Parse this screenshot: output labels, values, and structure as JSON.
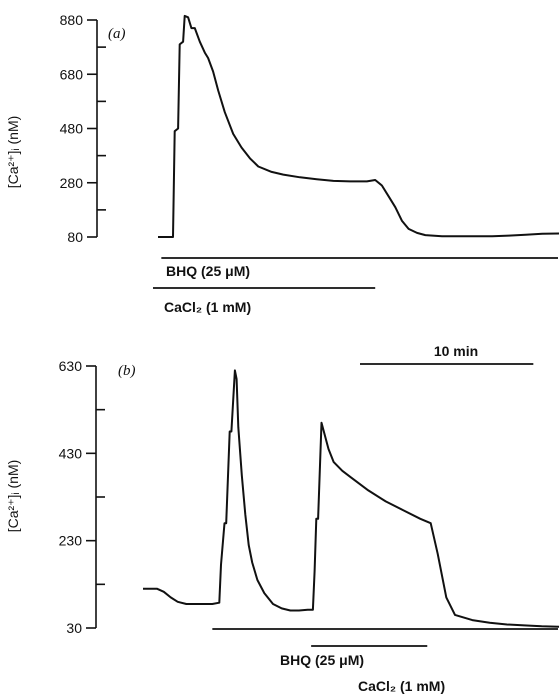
{
  "chart_data": [
    {
      "type": "line",
      "panel": "(a)",
      "title": "",
      "xlabel": "",
      "ylabel": "[Ca²⁺]ᵢ (nM)",
      "ylim": [
        80,
        880
      ],
      "yticks": [
        80,
        280,
        480,
        680,
        880
      ],
      "minor_yticks": [
        180,
        380,
        580,
        780
      ],
      "grid": false,
      "x_unit": "min",
      "xlim": [
        0,
        24
      ],
      "series": [
        {
          "x": [
            0,
            0.9,
            1.0,
            1.2,
            1.3,
            1.5,
            1.6,
            1.8,
            2.0,
            2.2,
            2.5,
            2.8,
            3.0,
            3.3,
            3.6,
            4.0,
            4.5,
            5.0,
            5.5,
            6.0,
            6.8,
            7.5,
            8.5,
            9.5,
            10.5,
            11.5,
            12.5,
            13.0,
            13.4,
            13.8,
            14.2,
            14.6,
            15.0,
            15.5,
            16.0,
            17.0,
            18.0,
            19.0,
            20.0,
            21.0,
            22.0,
            23.0,
            24.0
          ],
          "y": [
            80,
            80,
            470,
            480,
            790,
            800,
            895,
            890,
            850,
            850,
            800,
            760,
            740,
            690,
            620,
            540,
            460,
            410,
            370,
            340,
            320,
            310,
            300,
            293,
            287,
            285,
            285,
            290,
            270,
            230,
            190,
            140,
            110,
            95,
            87,
            83,
            83,
            83,
            83,
            85,
            88,
            92,
            93
          ]
        }
      ],
      "bars": [
        {
          "label": "BHQ (25 μM)",
          "x_start": 0.2,
          "x_end": 24
        },
        {
          "label": "CaCl₂ (1 mM)",
          "x_start": -0.3,
          "x_end": 13.0
        }
      ]
    },
    {
      "type": "line",
      "panel": "(b)",
      "title": "",
      "xlabel": "",
      "ylabel": "[Ca²⁺]ᵢ (nM)",
      "ylim": [
        30,
        630
      ],
      "yticks": [
        30,
        230,
        430,
        630
      ],
      "minor_yticks": [
        130,
        330,
        530
      ],
      "grid": false,
      "x_unit": "min",
      "xlim": [
        0,
        24
      ],
      "scale_bar": {
        "label": "10 min",
        "minutes": 10
      },
      "series": [
        {
          "x": [
            0,
            0.8,
            1.2,
            1.6,
            2.0,
            2.5,
            3.0,
            3.5,
            4.0,
            4.4,
            4.5,
            4.7,
            4.8,
            5.0,
            5.1,
            5.3,
            5.4,
            5.5,
            5.7,
            5.9,
            6.1,
            6.3,
            6.6,
            7.0,
            7.5,
            8.0,
            8.5,
            9.0,
            9.5,
            9.8,
            9.9,
            10.0,
            10.1,
            10.3,
            10.5,
            10.7,
            11.0,
            11.5,
            12.0,
            13.0,
            14.0,
            15.0,
            16.0,
            16.6,
            17.0,
            17.5,
            18.0,
            19.0,
            20.0,
            21.0,
            22.0,
            23.0,
            24.0
          ],
          "y": [
            120,
            120,
            113,
            100,
            90,
            85,
            85,
            85,
            85,
            88,
            175,
            270,
            270,
            480,
            480,
            620,
            600,
            490,
            380,
            290,
            220,
            180,
            140,
            110,
            85,
            75,
            70,
            70,
            72,
            72,
            160,
            280,
            280,
            500,
            470,
            440,
            410,
            390,
            375,
            345,
            320,
            300,
            280,
            270,
            200,
            100,
            60,
            48,
            42,
            38,
            36,
            34,
            33
          ]
        }
      ],
      "bars": [
        {
          "label": "BHQ (25 μM)",
          "x_start": 4.0,
          "x_end": 24
        },
        {
          "label": "CaCl₂ (1 mM)",
          "x_start": 9.7,
          "x_end": 16.4
        }
      ]
    }
  ]
}
